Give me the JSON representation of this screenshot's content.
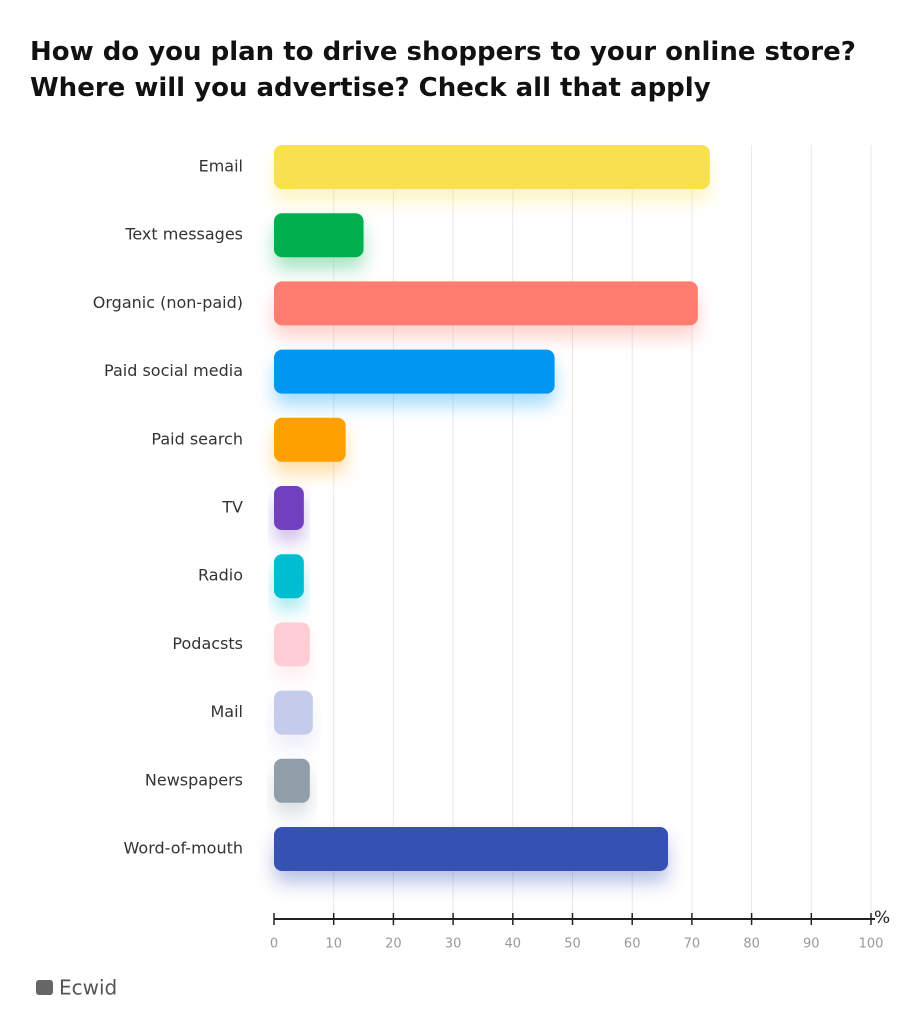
{
  "chart_data": {
    "type": "bar",
    "title_lines": [
      "How do you plan to drive shoppers to your online store?",
      "Where will you advertise? Check all that apply"
    ],
    "categories": [
      "Email",
      "Text messages",
      "Organic (non-paid)",
      "Paid social media",
      "Paid search",
      "TV",
      "Radio",
      "Podacsts",
      "Mail",
      "Newspapers",
      "Word-of-mouth"
    ],
    "values": [
      73,
      15,
      71,
      47,
      12,
      5,
      5,
      6,
      6.5,
      6,
      66
    ],
    "colors": [
      "#f9e04f",
      "#00b04f",
      "#ff7b71",
      "#0097f2",
      "#ffa006",
      "#7040bf",
      "#00bdd1",
      "#ffcdd3",
      "#c5cbea",
      "#8f9ea9",
      "#3451b3"
    ],
    "xlim": [
      0,
      100
    ],
    "xticks": [
      0,
      10,
      20,
      30,
      40,
      50,
      60,
      70,
      80,
      90,
      100
    ],
    "xlabel": "%",
    "grid": true
  },
  "logo": "Ecwid"
}
